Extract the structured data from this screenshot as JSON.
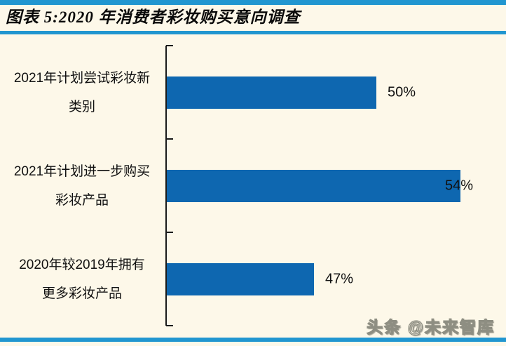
{
  "header": {
    "title": "图表 5:2020 年消费者彩妆购买意向调查"
  },
  "chart_data": {
    "type": "bar",
    "orientation": "horizontal",
    "title": "2020 年消费者彩妆购买意向调查",
    "categories": [
      "2021年计划尝试彩妆新\n类别",
      "2021年计划进一步购买\n彩妆产品",
      "2020年较2019年拥有\n更多彩妆产品"
    ],
    "values": [
      50,
      54,
      47
    ],
    "value_labels": [
      "50%",
      "54%",
      "47%"
    ],
    "xlabel": "",
    "ylabel": "",
    "xlim": [
      40,
      55
    ],
    "grid": false,
    "legend": false,
    "bar_color": "#0E67B0"
  },
  "watermark": {
    "text": "头条 @未来智库"
  },
  "colors": {
    "background": "#FDF8E9",
    "accent_line": "#2196D0",
    "bar": "#0E67B0",
    "text": "#111111"
  }
}
